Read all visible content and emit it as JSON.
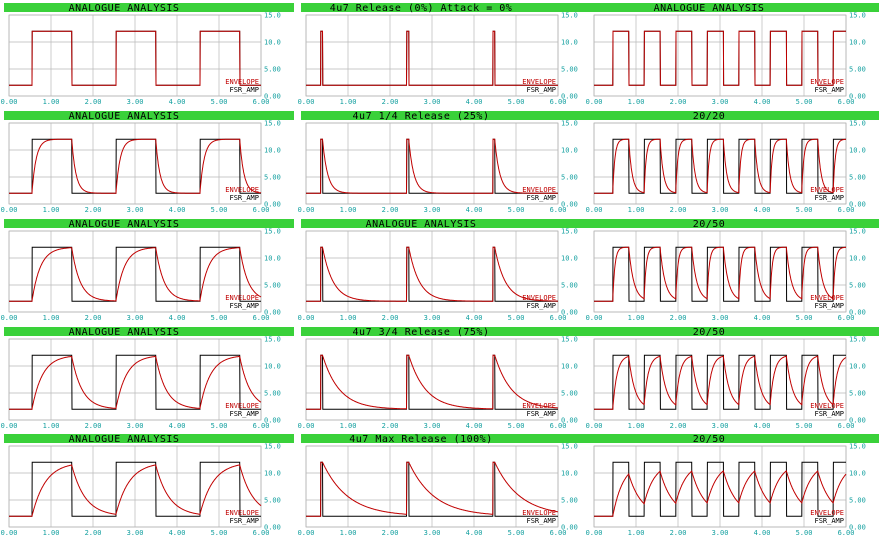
{
  "colors": {
    "title_bar": "#3ad13a",
    "grid": "#b8b8b8",
    "tick_label": "#14a0a0",
    "input_trace": "#000000",
    "envelope_trace": "#c00000"
  },
  "legend": {
    "envelope": "ENVELOPE",
    "input": "FSR_AMP"
  },
  "x_ticks": [
    "0.00",
    "1.00",
    "2.00",
    "3.00",
    "4.00",
    "5.00",
    "6.00"
  ],
  "y_ticks": [
    "0.00",
    "5.00",
    "10.0",
    "15.0"
  ],
  "chart_data": [
    {
      "type": "line",
      "title": "ANALOGUE ANALYSIS",
      "column": 0,
      "row": 0,
      "period": 2.0,
      "on": 0.95,
      "start": 0.55,
      "tau_attack": 0.0,
      "tau_release": 0.0,
      "xlim": [
        0,
        6
      ],
      "ylim": [
        0,
        15
      ],
      "series": [
        {
          "name": "ENVELOPE"
        },
        {
          "name": "FSR_AMP"
        }
      ]
    },
    {
      "type": "line",
      "title": "ANALOGUE ANALYSIS",
      "column": 0,
      "row": 1,
      "period": 2.0,
      "on": 0.95,
      "start": 0.55,
      "tau_attack": 0.1,
      "tau_release": 0.1,
      "xlim": [
        0,
        6
      ],
      "ylim": [
        0,
        15
      ],
      "series": [
        {
          "name": "ENVELOPE"
        },
        {
          "name": "FSR_AMP"
        }
      ]
    },
    {
      "type": "line",
      "title": "ANALOGUE ANALYSIS",
      "column": 0,
      "row": 2,
      "period": 2.0,
      "on": 0.95,
      "start": 0.55,
      "tau_attack": 0.2,
      "tau_release": 0.2,
      "xlim": [
        0,
        6
      ],
      "ylim": [
        0,
        15
      ],
      "series": [
        {
          "name": "ENVELOPE"
        },
        {
          "name": "FSR_AMP"
        }
      ]
    },
    {
      "type": "line",
      "title": "ANALOGUE ANALYSIS",
      "column": 0,
      "row": 3,
      "period": 2.0,
      "on": 0.95,
      "start": 0.55,
      "tau_attack": 0.25,
      "tau_release": 0.25,
      "xlim": [
        0,
        6
      ],
      "ylim": [
        0,
        15
      ],
      "series": [
        {
          "name": "ENVELOPE"
        },
        {
          "name": "FSR_AMP"
        }
      ]
    },
    {
      "type": "line",
      "title": "ANALOGUE ANALYSIS",
      "column": 0,
      "row": 4,
      "period": 2.0,
      "on": 0.95,
      "start": 0.55,
      "tau_attack": 0.32,
      "tau_release": 0.32,
      "xlim": [
        0,
        6
      ],
      "ylim": [
        0,
        15
      ],
      "series": [
        {
          "name": "ENVELOPE"
        },
        {
          "name": "FSR_AMP"
        }
      ]
    },
    {
      "type": "line",
      "title": "4u7 Release (0%) Attack = 0%",
      "column": 1,
      "row": 0,
      "period": 2.05,
      "on": 0.05,
      "start": 0.35,
      "tau_attack": 0.0,
      "tau_release": 0.0,
      "xlim": [
        0,
        6
      ],
      "ylim": [
        0,
        15
      ],
      "series": [
        {
          "name": "ENVELOPE"
        },
        {
          "name": "FSR_AMP"
        }
      ]
    },
    {
      "type": "line",
      "title": "4u7 1/4 Release (25%)",
      "column": 1,
      "row": 1,
      "period": 2.05,
      "on": 0.05,
      "start": 0.35,
      "tau_attack": 0.0,
      "tau_release": 0.12,
      "xlim": [
        0,
        6
      ],
      "ylim": [
        0,
        15
      ],
      "series": [
        {
          "name": "ENVELOPE"
        },
        {
          "name": "FSR_AMP"
        }
      ]
    },
    {
      "type": "line",
      "title": "ANALOGUE ANALYSIS",
      "column": 1,
      "row": 2,
      "period": 2.05,
      "on": 0.05,
      "start": 0.35,
      "tau_attack": 0.0,
      "tau_release": 0.25,
      "xlim": [
        0,
        6
      ],
      "ylim": [
        0,
        15
      ],
      "series": [
        {
          "name": "ENVELOPE"
        },
        {
          "name": "FSR_AMP"
        }
      ]
    },
    {
      "type": "line",
      "title": "4u7 3/4 Release (75%)",
      "column": 1,
      "row": 3,
      "period": 2.05,
      "on": 0.05,
      "start": 0.35,
      "tau_attack": 0.0,
      "tau_release": 0.4,
      "xlim": [
        0,
        6
      ],
      "ylim": [
        0,
        15
      ],
      "series": [
        {
          "name": "ENVELOPE"
        },
        {
          "name": "FSR_AMP"
        }
      ]
    },
    {
      "type": "line",
      "title": "4u7 Max Release (100%)",
      "column": 1,
      "row": 4,
      "period": 2.05,
      "on": 0.05,
      "start": 0.35,
      "tau_attack": 0.0,
      "tau_release": 0.6,
      "xlim": [
        0,
        6
      ],
      "ylim": [
        0,
        15
      ],
      "series": [
        {
          "name": "ENVELOPE"
        },
        {
          "name": "FSR_AMP"
        }
      ]
    },
    {
      "type": "line",
      "title": "ANALOGUE ANALYSIS",
      "column": 2,
      "row": 0,
      "period": 0.75,
      "on": 0.38,
      "start": 0.45,
      "tau_attack": 0.0,
      "tau_release": 0.0,
      "xlim": [
        0,
        6
      ],
      "ylim": [
        0,
        15
      ],
      "series": [
        {
          "name": "ENVELOPE"
        },
        {
          "name": "FSR_AMP"
        }
      ]
    },
    {
      "type": "line",
      "title": "20/20",
      "column": 2,
      "row": 1,
      "period": 0.75,
      "on": 0.38,
      "start": 0.45,
      "tau_attack": 0.05,
      "tau_release": 0.08,
      "xlim": [
        0,
        6
      ],
      "ylim": [
        0,
        15
      ],
      "series": [
        {
          "name": "ENVELOPE"
        },
        {
          "name": "FSR_AMP"
        }
      ]
    },
    {
      "type": "line",
      "title": "20/50",
      "column": 2,
      "row": 2,
      "period": 0.75,
      "on": 0.38,
      "start": 0.45,
      "tau_attack": 0.05,
      "tau_release": 0.12,
      "xlim": [
        0,
        6
      ],
      "ylim": [
        0,
        15
      ],
      "series": [
        {
          "name": "ENVELOPE"
        },
        {
          "name": "FSR_AMP"
        }
      ]
    },
    {
      "type": "line",
      "title": "20/50",
      "column": 2,
      "row": 3,
      "period": 0.75,
      "on": 0.38,
      "start": 0.45,
      "tau_attack": 0.1,
      "tau_release": 0.15,
      "xlim": [
        0,
        6
      ],
      "ylim": [
        0,
        15
      ],
      "series": [
        {
          "name": "ENVELOPE"
        },
        {
          "name": "FSR_AMP"
        }
      ]
    },
    {
      "type": "line",
      "title": "20/50",
      "column": 2,
      "row": 4,
      "period": 0.75,
      "on": 0.38,
      "start": 0.45,
      "tau_attack": 0.25,
      "tau_release": 0.3,
      "xlim": [
        0,
        6
      ],
      "ylim": [
        0,
        15
      ],
      "series": [
        {
          "name": "ENVELOPE"
        },
        {
          "name": "FSR_AMP"
        }
      ]
    }
  ]
}
